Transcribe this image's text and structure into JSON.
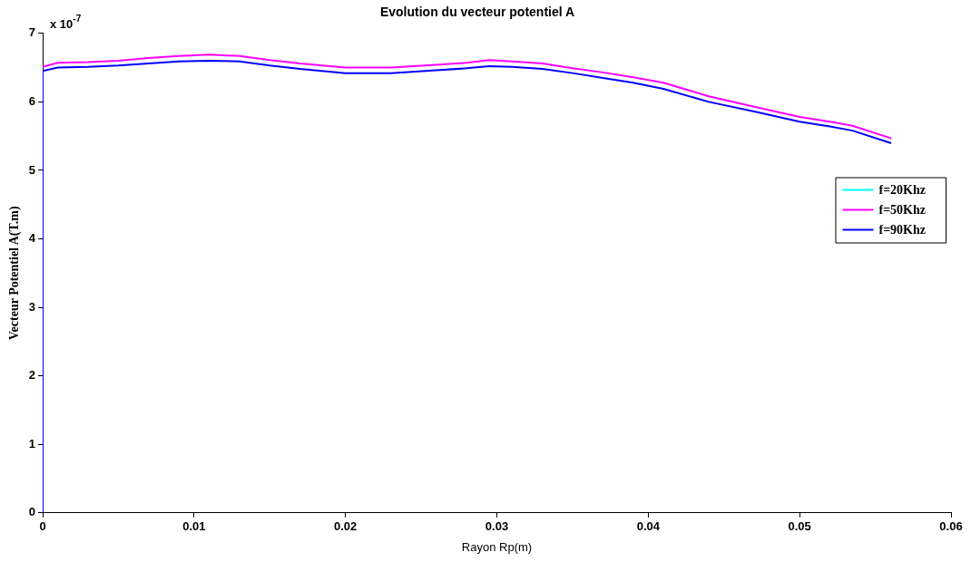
{
  "chart_data": {
    "type": "line",
    "title": "Evolution du vecteur potentiel A",
    "xlabel": "Rayon Rp(m)",
    "ylabel": "Vecteur Potentiel A(T.m)",
    "annotations": [
      "x 10$^{-7}$"
    ],
    "xlim": [
      0,
      0.06
    ],
    "xticks": [
      0,
      0.01,
      0.02,
      0.03,
      0.04,
      0.05,
      0.06
    ],
    "ylim": [
      0,
      7
    ],
    "yticks": [
      0,
      1,
      2,
      3,
      4,
      5,
      6,
      7
    ],
    "grid": false,
    "legend": "right",
    "marker": "none",
    "line_style": "solid",
    "series": [
      {
        "name": "f=20Khz",
        "color": "#00ffff"
      },
      {
        "name": "f=50Khz",
        "color": "#ff00ff",
        "x": [
          0,
          0.001,
          0.003,
          0.005,
          0.007,
          0.009,
          0.011,
          0.013,
          0.015,
          0.017,
          0.02,
          0.023,
          0.026,
          0.028,
          0.0295,
          0.031,
          0.033,
          0.035,
          0.037,
          0.039,
          0.041,
          0.044,
          0.047,
          0.05,
          0.052,
          0.0535,
          0.056
        ],
        "values": [
          6.51,
          6.57,
          6.58,
          6.6,
          6.64,
          6.67,
          6.69,
          6.67,
          6.61,
          6.56,
          6.5,
          6.5,
          6.54,
          6.57,
          6.61,
          6.59,
          6.56,
          6.49,
          6.43,
          6.36,
          6.28,
          6.08,
          5.93,
          5.78,
          5.71,
          5.65,
          5.47
        ]
      },
      {
        "name": "f=90Khz",
        "color": "#0000ff",
        "x": [
          0,
          0,
          0.001,
          0.003,
          0.005,
          0.007,
          0.009,
          0.011,
          0.013,
          0.015,
          0.017,
          0.02,
          0.023,
          0.026,
          0.028,
          0.0295,
          0.031,
          0.033,
          0.035,
          0.037,
          0.039,
          0.041,
          0.044,
          0.047,
          0.05,
          0.052,
          0.0535,
          0.056
        ],
        "values": [
          0,
          6.45,
          6.5,
          6.51,
          6.53,
          6.56,
          6.59,
          6.6,
          6.59,
          6.53,
          6.48,
          6.42,
          6.42,
          6.46,
          6.49,
          6.52,
          6.51,
          6.48,
          6.42,
          6.35,
          6.28,
          6.19,
          6.0,
          5.86,
          5.71,
          5.64,
          5.58,
          5.4
        ]
      }
    ]
  }
}
